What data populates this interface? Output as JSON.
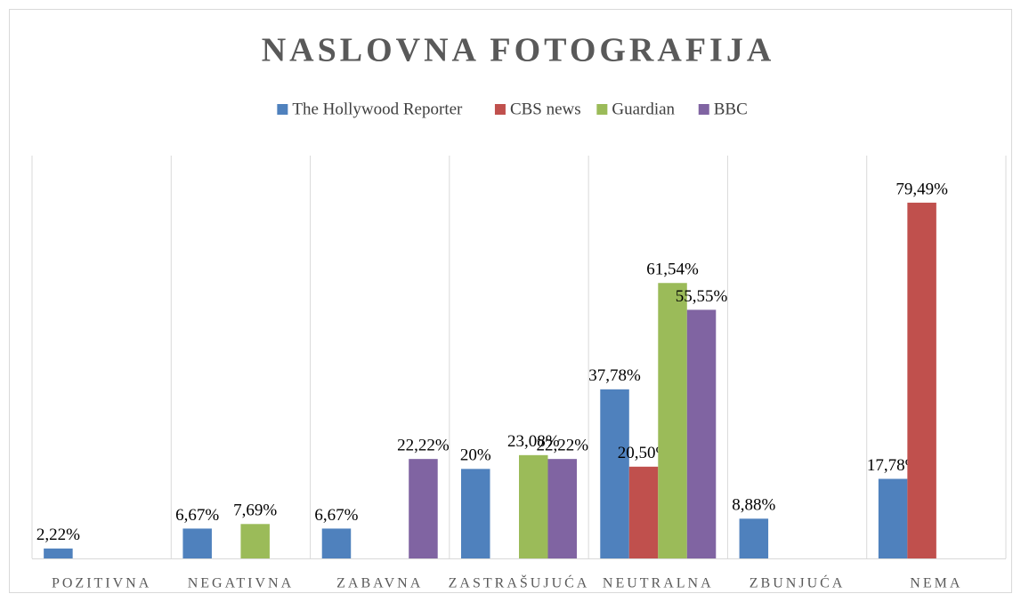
{
  "chart_data": {
    "type": "bar",
    "title": "NASLOVNA FOTOGRAFIJA",
    "categories": [
      "POZITIVNA",
      "NEGATIVNA",
      "ZABAVNA",
      "ZASTRAŠUJUĆA",
      "NEUTRALNA",
      "ZBUNJUĆA",
      "NEMA"
    ],
    "series": [
      {
        "name": "The Hollywood Reporter",
        "color": "#4f81bd",
        "values": [
          2.22,
          6.67,
          6.67,
          20,
          37.78,
          8.88,
          17.78
        ],
        "value_labels": [
          "2,22%",
          "6,67%",
          "6,67%",
          "20%",
          "37,78%",
          "8,88%",
          "17,78%"
        ]
      },
      {
        "name": "CBS news",
        "color": "#c0504d",
        "values": [
          null,
          null,
          null,
          null,
          20.5,
          null,
          79.49
        ],
        "value_labels": [
          null,
          null,
          null,
          null,
          "20,50%",
          null,
          "79,49%"
        ]
      },
      {
        "name": "Guardian",
        "color": "#9bbb59",
        "values": [
          null,
          7.69,
          null,
          23.08,
          61.54,
          null,
          null
        ],
        "value_labels": [
          null,
          "7,69%",
          null,
          "23,08%",
          "61,54%",
          null,
          null
        ]
      },
      {
        "name": "BBC",
        "color": "#8064a2",
        "values": [
          null,
          null,
          22.22,
          22.22,
          55.55,
          null,
          null
        ],
        "value_labels": [
          null,
          null,
          "22,22%",
          "22,22%",
          "55,55%",
          null,
          null
        ]
      }
    ],
    "ylim": [
      0,
      90
    ],
    "legend": "top"
  }
}
